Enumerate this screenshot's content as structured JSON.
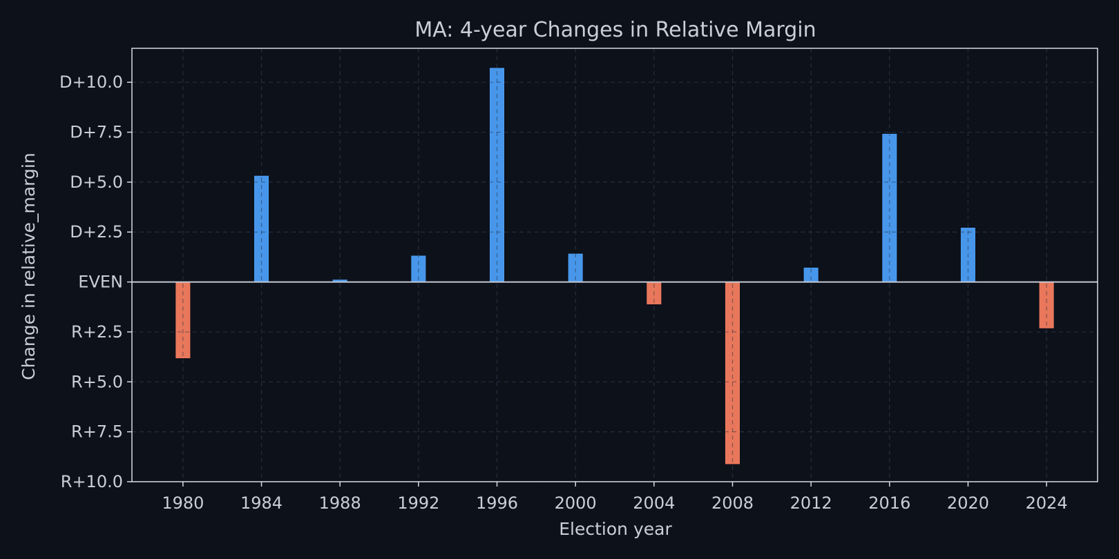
{
  "chart_data": {
    "type": "bar",
    "title": "MA: 4-year Changes in Relative Margin",
    "xlabel": "Election year",
    "ylabel": "Change in relative_margin",
    "categories": [
      "1980",
      "1984",
      "1988",
      "1992",
      "1996",
      "2000",
      "2004",
      "2008",
      "2012",
      "2016",
      "2020",
      "2024"
    ],
    "x": [
      1980,
      1984,
      1988,
      1992,
      1996,
      2000,
      2004,
      2008,
      2012,
      2016,
      2020,
      2024
    ],
    "values": [
      -3.8,
      5.3,
      0.1,
      1.3,
      10.7,
      1.4,
      -1.1,
      -9.1,
      0.7,
      7.4,
      2.7,
      -2.3
    ],
    "xlim": [
      1977.4,
      2026.6
    ],
    "ylim": [
      -10.0,
      11.7
    ],
    "yticks": [
      10.0,
      7.5,
      5.0,
      2.5,
      0,
      -2.5,
      -5.0,
      -7.5,
      -10.0
    ],
    "yticklabels": [
      "D+10.0",
      "D+7.5",
      "D+5.0",
      "D+2.5",
      "EVEN",
      "R+2.5",
      "R+5.0",
      "R+7.5",
      "R+10.0"
    ],
    "grid": true,
    "colors": {
      "positive": "#4b9ef5",
      "negative": "#f47d5f",
      "background": "#0d111a",
      "axes": "#d8dde5",
      "grid": "#2a2f3a",
      "text": "#c9cfd8"
    }
  }
}
